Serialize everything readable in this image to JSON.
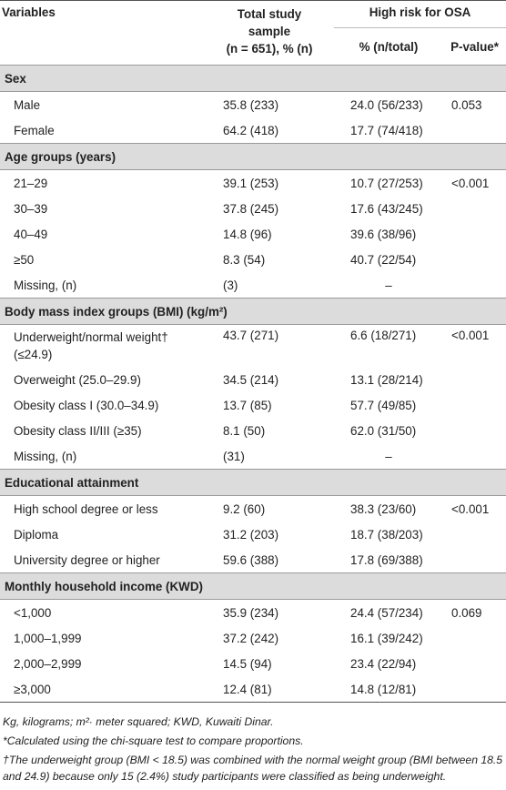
{
  "header": {
    "variables": "Variables",
    "total_line1": "Total study",
    "total_line2": "sample",
    "total_line3": "(n = 651), % (n)",
    "high_risk": "High risk for OSA",
    "pct": "% (n/total)",
    "pvalue": "P-value*"
  },
  "sections": [
    {
      "title": "Sex",
      "rows": [
        {
          "label": "Male",
          "total": "35.8 (233)",
          "high": "24.0 (56/233)",
          "p": "0.053"
        },
        {
          "label": "Female",
          "total": "64.2 (418)",
          "high": "17.7 (74/418)",
          "p": ""
        }
      ]
    },
    {
      "title": "Age groups (years)",
      "rows": [
        {
          "label": "21–29",
          "total": "39.1 (253)",
          "high": "10.7 (27/253)",
          "p": "<0.001"
        },
        {
          "label": "30–39",
          "total": "37.8 (245)",
          "high": "17.6 (43/245)",
          "p": ""
        },
        {
          "label": "40–49",
          "total": "14.8 (96)",
          "high": "39.6 (38/96)",
          "p": ""
        },
        {
          "label": "≥50",
          "total": "8.3 (54)",
          "high": "40.7 (22/54)",
          "p": ""
        },
        {
          "label": "Missing, (n)",
          "total": "(3)",
          "high": "–",
          "p": ""
        }
      ]
    },
    {
      "title": "Body mass index groups (BMI) (kg/m²)",
      "rows": [
        {
          "label": "Underweight/normal weight† (≤24.9)",
          "total": "43.7 (271)",
          "high": "6.6 (18/271)",
          "p": "<0.001"
        },
        {
          "label": "Overweight (25.0–29.9)",
          "total": "34.5 (214)",
          "high": "13.1 (28/214)",
          "p": ""
        },
        {
          "label": "Obesity class I (30.0–34.9)",
          "total": "13.7 (85)",
          "high": "57.7 (49/85)",
          "p": ""
        },
        {
          "label": "Obesity class II/III (≥35)",
          "total": "8.1 (50)",
          "high": "62.0 (31/50)",
          "p": ""
        },
        {
          "label": "Missing, (n)",
          "total": "(31)",
          "high": "–",
          "p": ""
        }
      ]
    },
    {
      "title": "Educational attainment",
      "rows": [
        {
          "label": "High school degree or less",
          "total": "9.2 (60)",
          "high": "38.3 (23/60)",
          "p": "<0.001"
        },
        {
          "label": "Diploma",
          "total": "31.2 (203)",
          "high": "18.7 (38/203)",
          "p": ""
        },
        {
          "label": "University degree or higher",
          "total": "59.6 (388)",
          "high": "17.8 (69/388)",
          "p": ""
        }
      ]
    },
    {
      "title": "Monthly household income (KWD)",
      "rows": [
        {
          "label": "<1,000",
          "total": "35.9 (234)",
          "high": "24.4 (57/234)",
          "p": "0.069"
        },
        {
          "label": "1,000–1,999",
          "total": "37.2 (242)",
          "high": "16.1 (39/242)",
          "p": ""
        },
        {
          "label": "2,000–2,999",
          "total": "14.5 (94)",
          "high": "23.4 (22/94)",
          "p": ""
        },
        {
          "label": "≥3,000",
          "total": "12.4 (81)",
          "high": "14.8 (12/81)",
          "p": ""
        }
      ]
    }
  ],
  "footnotes": {
    "abbrev": "Kg, kilograms; m²· meter squared; KWD, Kuwaiti Dinar.",
    "star": "*Calculated using the chi-square test to compare proportions.",
    "dagger": "†The underweight group (BMI < 18.5) was combined with the normal weight group (BMI between 18.5 and 24.9) because only 15 (2.4%) study participants were classified as being underweight."
  }
}
